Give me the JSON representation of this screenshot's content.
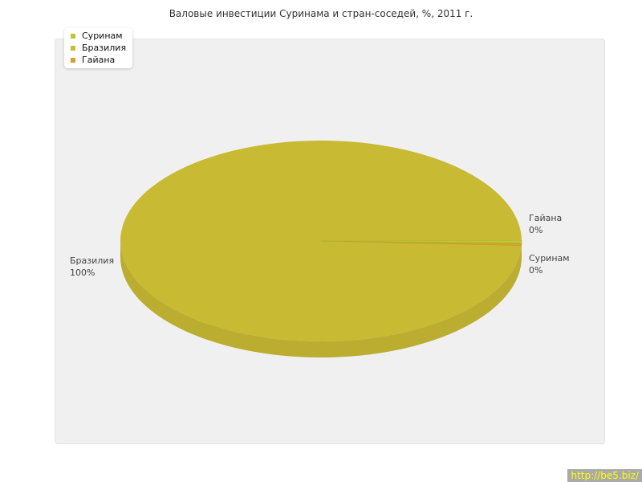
{
  "chart_data": {
    "type": "pie",
    "title": "Валовые инвестиции Суринама и стран-соседей, %, 2011 г.",
    "categories": [
      "Суринам",
      "Бразилия",
      "Гайана"
    ],
    "values": [
      0,
      100,
      0
    ],
    "labels": [
      "0%",
      "100%",
      "0%"
    ],
    "colors": [
      "#bcc832",
      "#c8ba32",
      "#d4a22e"
    ],
    "legend_position": "top-left",
    "three_d": true
  },
  "watermark": "http://be5.biz/"
}
